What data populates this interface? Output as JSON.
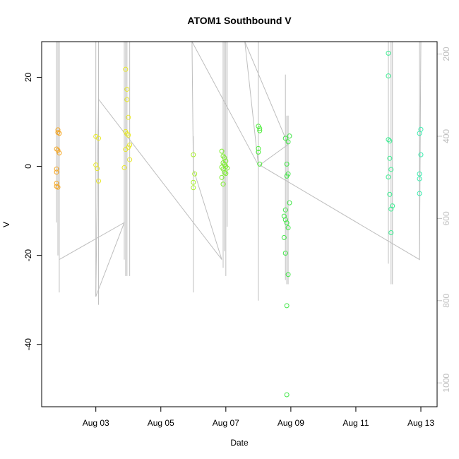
{
  "chart_data": {
    "type": "scatter",
    "title": "ATOM1 Southbound V",
    "xlabel": "Date",
    "ylabel": "V",
    "x_axis": {
      "range": [
        "2022-08-01T08:00",
        "2022-08-13T12:00"
      ],
      "ticks": [
        {
          "value": "2022-08-03T00:00",
          "label": "Aug 03"
        },
        {
          "value": "2022-08-05T00:00",
          "label": "Aug 05"
        },
        {
          "value": "2022-08-07T00:00",
          "label": "Aug 07"
        },
        {
          "value": "2022-08-09T00:00",
          "label": "Aug 09"
        },
        {
          "value": "2022-08-11T00:00",
          "label": "Aug 11"
        },
        {
          "value": "2022-08-13T00:00",
          "label": "Aug 13"
        }
      ]
    },
    "y_axis": {
      "range": [
        -54,
        28
      ],
      "ticks": [
        20,
        0,
        -20,
        -40
      ]
    },
    "y2_axis": {
      "range": [
        1058,
        170
      ],
      "ticks": [
        200,
        400,
        600,
        800,
        1000
      ],
      "inverted": true,
      "color": "#bebebe"
    },
    "grid": false,
    "points": [
      {
        "x": "2022-08-01T20:00",
        "y": 8.2,
        "color": "#f5a623"
      },
      {
        "x": "2022-08-01T20:00",
        "y": 7.6,
        "color": "#f5a623"
      },
      {
        "x": "2022-08-01T21:00",
        "y": 7.4,
        "color": "#f5a623"
      },
      {
        "x": "2022-08-01T19:00",
        "y": 3.9,
        "color": "#f5a623"
      },
      {
        "x": "2022-08-01T20:00",
        "y": 3.6,
        "color": "#f5a623"
      },
      {
        "x": "2022-08-01T21:00",
        "y": 3.0,
        "color": "#f5a623"
      },
      {
        "x": "2022-08-01T19:00",
        "y": -0.6,
        "color": "#f5a623"
      },
      {
        "x": "2022-08-01T19:00",
        "y": -1.3,
        "color": "#f5a623"
      },
      {
        "x": "2022-08-01T19:00",
        "y": -3.8,
        "color": "#f5a623"
      },
      {
        "x": "2022-08-01T19:00",
        "y": -4.5,
        "color": "#f5a623"
      },
      {
        "x": "2022-08-01T20:00",
        "y": -4.7,
        "color": "#f5a623"
      },
      {
        "x": "2022-08-03T00:00",
        "y": 6.7,
        "color": "#e8e826"
      },
      {
        "x": "2022-08-03T02:00",
        "y": 6.3,
        "color": "#e8e826"
      },
      {
        "x": "2022-08-03T00:00",
        "y": 0.3,
        "color": "#e8e826"
      },
      {
        "x": "2022-08-03T01:00",
        "y": -0.5,
        "color": "#e8e826"
      },
      {
        "x": "2022-08-03T02:00",
        "y": -3.3,
        "color": "#e8e826"
      },
      {
        "x": "2022-08-03T22:00",
        "y": 21.8,
        "color": "#e8e826"
      },
      {
        "x": "2022-08-03T23:00",
        "y": 17.3,
        "color": "#e8e826"
      },
      {
        "x": "2022-08-03T23:00",
        "y": 15.0,
        "color": "#e8e826"
      },
      {
        "x": "2022-08-04T00:00",
        "y": 11.0,
        "color": "#e8e826"
      },
      {
        "x": "2022-08-03T22:00",
        "y": 7.8,
        "color": "#e8e826"
      },
      {
        "x": "2022-08-03T23:00",
        "y": 7.3,
        "color": "#e8e826"
      },
      {
        "x": "2022-08-04T00:00",
        "y": 7.0,
        "color": "#e8e826"
      },
      {
        "x": "2022-08-04T01:00",
        "y": 4.8,
        "color": "#e8e826"
      },
      {
        "x": "2022-08-04T00:00",
        "y": 4.3,
        "color": "#e8e826"
      },
      {
        "x": "2022-08-03T22:00",
        "y": 3.8,
        "color": "#e8e826"
      },
      {
        "x": "2022-08-04T01:00",
        "y": 1.5,
        "color": "#e8e826"
      },
      {
        "x": "2022-08-03T21:00",
        "y": -0.3,
        "color": "#e8e826"
      },
      {
        "x": "2022-08-06T00:00",
        "y": 2.6,
        "color": "#aaf02c"
      },
      {
        "x": "2022-08-06T01:00",
        "y": -1.7,
        "color": "#aaf02c"
      },
      {
        "x": "2022-08-06T00:00",
        "y": -3.6,
        "color": "#aaf02c"
      },
      {
        "x": "2022-08-06T00:00",
        "y": -4.8,
        "color": "#aaf02c"
      },
      {
        "x": "2022-08-06T21:00",
        "y": 3.4,
        "color": "#7ff030"
      },
      {
        "x": "2022-08-06T22:00",
        "y": 2.3,
        "color": "#7ff030"
      },
      {
        "x": "2022-08-06T23:00",
        "y": 1.9,
        "color": "#7ff030"
      },
      {
        "x": "2022-08-07T00:00",
        "y": 1.2,
        "color": "#7ff030"
      },
      {
        "x": "2022-08-06T22:00",
        "y": 0.8,
        "color": "#7ff030"
      },
      {
        "x": "2022-08-06T23:00",
        "y": 0.4,
        "color": "#7ff030"
      },
      {
        "x": "2022-08-07T00:00",
        "y": 0.0,
        "color": "#7ff030"
      },
      {
        "x": "2022-08-06T21:00",
        "y": -0.2,
        "color": "#7ff030"
      },
      {
        "x": "2022-08-06T22:00",
        "y": -0.6,
        "color": "#7ff030"
      },
      {
        "x": "2022-08-07T01:00",
        "y": -0.4,
        "color": "#7ff030"
      },
      {
        "x": "2022-08-06T23:00",
        "y": -1.4,
        "color": "#7ff030"
      },
      {
        "x": "2022-08-07T00:00",
        "y": -1.6,
        "color": "#7ff030"
      },
      {
        "x": "2022-08-06T21:00",
        "y": -2.5,
        "color": "#7ff030"
      },
      {
        "x": "2022-08-06T22:00",
        "y": -4.0,
        "color": "#7ff030"
      },
      {
        "x": "2022-08-08T00:00",
        "y": 9.0,
        "color": "#4ded3a"
      },
      {
        "x": "2022-08-08T01:00",
        "y": 8.5,
        "color": "#4ded3a"
      },
      {
        "x": "2022-08-08T01:00",
        "y": 8.0,
        "color": "#4ded3a"
      },
      {
        "x": "2022-08-08T00:00",
        "y": 4.0,
        "color": "#4ded3a"
      },
      {
        "x": "2022-08-08T00:00",
        "y": 3.2,
        "color": "#4ded3a"
      },
      {
        "x": "2022-08-08T01:00",
        "y": 0.5,
        "color": "#4ded3a"
      },
      {
        "x": "2022-08-08T20:00",
        "y": 6.3,
        "color": "#45e64b"
      },
      {
        "x": "2022-08-08T23:00",
        "y": 6.8,
        "color": "#45e64b"
      },
      {
        "x": "2022-08-08T22:00",
        "y": 5.5,
        "color": "#45e64b"
      },
      {
        "x": "2022-08-08T21:00",
        "y": 0.5,
        "color": "#45e64b"
      },
      {
        "x": "2022-08-08T22:00",
        "y": -1.7,
        "color": "#45e64b"
      },
      {
        "x": "2022-08-08T21:00",
        "y": -2.2,
        "color": "#45e64b"
      },
      {
        "x": "2022-08-08T23:00",
        "y": -8.2,
        "color": "#45e64b"
      },
      {
        "x": "2022-08-08T20:00",
        "y": -9.8,
        "color": "#45e64b"
      },
      {
        "x": "2022-08-08T19:00",
        "y": -11.2,
        "color": "#45e64b"
      },
      {
        "x": "2022-08-08T20:00",
        "y": -12.0,
        "color": "#45e64b"
      },
      {
        "x": "2022-08-08T21:00",
        "y": -12.7,
        "color": "#45e64b"
      },
      {
        "x": "2022-08-08T22:00",
        "y": -13.8,
        "color": "#45e64b"
      },
      {
        "x": "2022-08-08T19:00",
        "y": -16.0,
        "color": "#45e64b"
      },
      {
        "x": "2022-08-08T20:00",
        "y": -19.5,
        "color": "#45e64b"
      },
      {
        "x": "2022-08-08T22:00",
        "y": -24.3,
        "color": "#45e64b"
      },
      {
        "x": "2022-08-08T21:00",
        "y": -31.3,
        "color": "#45e64b"
      },
      {
        "x": "2022-08-08T21:00",
        "y": -51.3,
        "color": "#45e64b"
      },
      {
        "x": "2022-08-12T00:00",
        "y": 25.4,
        "color": "#3ced92"
      },
      {
        "x": "2022-08-12T00:00",
        "y": 20.3,
        "color": "#3ced92"
      },
      {
        "x": "2022-08-12T00:00",
        "y": 6.0,
        "color": "#3ced92"
      },
      {
        "x": "2022-08-12T01:00",
        "y": 5.7,
        "color": "#3ced92"
      },
      {
        "x": "2022-08-12T01:00",
        "y": 1.8,
        "color": "#3ced92"
      },
      {
        "x": "2022-08-12T02:00",
        "y": -0.7,
        "color": "#3ced92"
      },
      {
        "x": "2022-08-12T00:00",
        "y": -2.4,
        "color": "#3ced92"
      },
      {
        "x": "2022-08-12T01:00",
        "y": -6.3,
        "color": "#3ced92"
      },
      {
        "x": "2022-08-12T03:00",
        "y": -8.9,
        "color": "#3ced92"
      },
      {
        "x": "2022-08-12T02:00",
        "y": -9.6,
        "color": "#3ced92"
      },
      {
        "x": "2022-08-12T02:00",
        "y": -14.9,
        "color": "#3ced92"
      },
      {
        "x": "2022-08-13T00:00",
        "y": 8.3,
        "color": "#3cedb0"
      },
      {
        "x": "2022-08-12T23:00",
        "y": 7.4,
        "color": "#3cedb0"
      },
      {
        "x": "2022-08-13T00:00",
        "y": 2.6,
        "color": "#3cedb0"
      },
      {
        "x": "2022-08-12T23:00",
        "y": -1.7,
        "color": "#3cedb0"
      },
      {
        "x": "2022-08-12T23:00",
        "y": -2.8,
        "color": "#3cedb0"
      },
      {
        "x": "2022-08-12T23:00",
        "y": -6.1,
        "color": "#3cedb0"
      }
    ],
    "overlay_line": {
      "color": "#bebebe",
      "axis": "y2",
      "spikes": [
        {
          "x": "2022-08-01T19:00",
          "top": 170,
          "bottom": 610
        },
        {
          "x": "2022-08-01T20:00",
          "top": 170,
          "bottom": 690
        },
        {
          "x": "2022-08-01T21:00",
          "top": 170,
          "bottom": 780
        },
        {
          "x": "2022-08-03T00:00",
          "top": 170,
          "bottom": 790
        },
        {
          "x": "2022-08-03T02:00",
          "top": 170,
          "bottom": 810
        },
        {
          "x": "2022-08-03T21:00",
          "top": 170,
          "bottom": 700
        },
        {
          "x": "2022-08-03T22:00",
          "top": 170,
          "bottom": 740
        },
        {
          "x": "2022-08-03T23:00",
          "top": 170,
          "bottom": 740
        },
        {
          "x": "2022-08-04T01:00",
          "top": 170,
          "bottom": 740
        },
        {
          "x": "2022-08-06T00:00",
          "top": 400,
          "bottom": 780
        },
        {
          "x": "2022-08-06T22:00",
          "top": 170,
          "bottom": 720
        },
        {
          "x": "2022-08-06T23:00",
          "top": 170,
          "bottom": 680
        },
        {
          "x": "2022-08-07T00:00",
          "top": 170,
          "bottom": 740
        },
        {
          "x": "2022-08-07T01:00",
          "top": 170,
          "bottom": 620
        },
        {
          "x": "2022-08-08T00:00",
          "top": 170,
          "bottom": 800
        },
        {
          "x": "2022-08-08T20:00",
          "top": 250,
          "bottom": 750
        },
        {
          "x": "2022-08-08T21:00",
          "top": 350,
          "bottom": 760
        },
        {
          "x": "2022-08-08T22:00",
          "top": 350,
          "bottom": 760
        },
        {
          "x": "2022-08-12T00:00",
          "top": 170,
          "bottom": 710
        },
        {
          "x": "2022-08-12T02:00",
          "top": 170,
          "bottom": 760
        },
        {
          "x": "2022-08-12T03:00",
          "top": 170,
          "bottom": 760
        },
        {
          "x": "2022-08-12T23:00",
          "top": 170,
          "bottom": 700
        }
      ],
      "path": [
        {
          "x": "2022-08-01T21:00",
          "y": 700
        },
        {
          "x": "2022-08-03T21:00",
          "y": 610
        },
        {
          "x": "2022-08-03T00:00",
          "y": 790
        },
        {
          "x": "2022-08-03T02:00",
          "y": 310
        },
        {
          "x": "2022-08-06T21:00",
          "y": 700
        },
        {
          "x": "2022-08-06T00:00",
          "y": 480
        },
        {
          "x": "2022-08-05T23:00",
          "y": 170
        },
        {
          "x": "2022-08-08T00:00",
          "y": 470
        },
        {
          "x": "2022-08-07T14:00",
          "y": 170
        },
        {
          "x": "2022-08-08T22:00",
          "y": 420
        },
        {
          "x": "2022-08-08T01:00",
          "y": 470
        },
        {
          "x": "2022-08-12T23:00",
          "y": 700
        },
        {
          "x": "2022-08-13T00:00",
          "y": 170
        }
      ]
    }
  }
}
